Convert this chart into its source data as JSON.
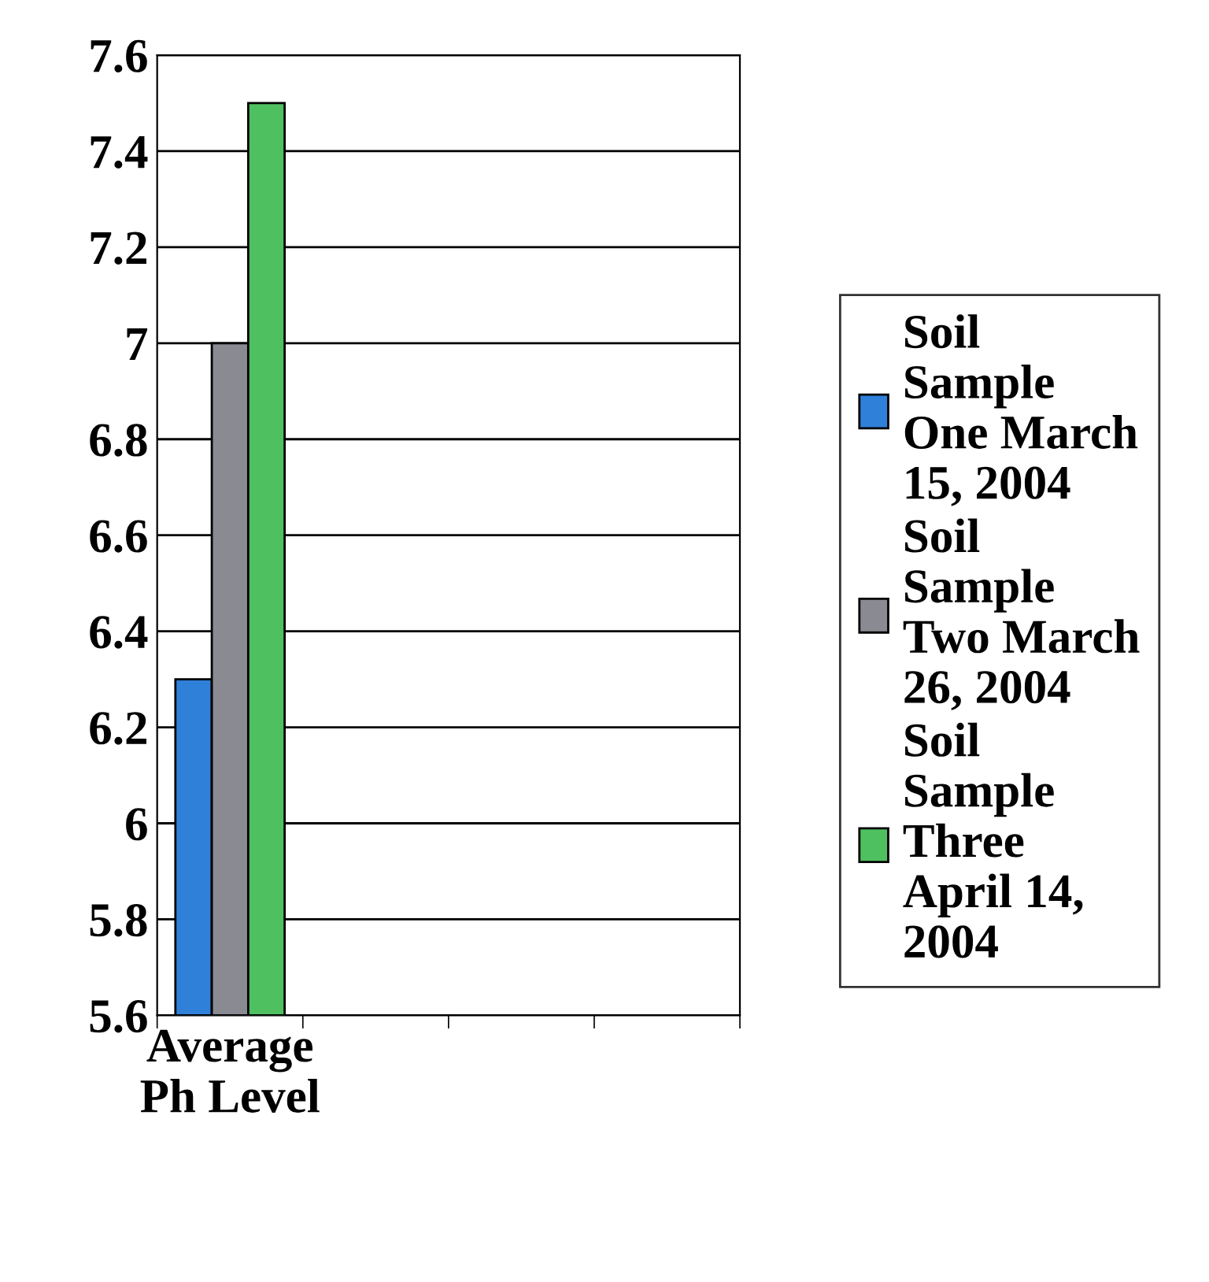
{
  "chart_data": {
    "type": "bar",
    "categories": [
      "Average Ph Level",
      null,
      null,
      null
    ],
    "series": [
      {
        "name": "Soil Sample One March 15, 2004",
        "color": "#2f80d8",
        "values": [
          6.3,
          null,
          null,
          null
        ]
      },
      {
        "name": "Soil Sample Two March 26, 2004",
        "color": "#8a8a92",
        "values": [
          7.0,
          null,
          null,
          null
        ]
      },
      {
        "name": "Soil Sample Three April 14, 2004",
        "color": "#4fc060",
        "values": [
          7.5,
          null,
          null,
          null
        ]
      }
    ],
    "ylim": [
      5.6,
      7.6
    ],
    "yticks": [
      5.6,
      5.8,
      6,
      6.2,
      6.4,
      6.6,
      6.8,
      7,
      7.2,
      7.4,
      7.6
    ],
    "grid": "y",
    "legend": "right"
  }
}
